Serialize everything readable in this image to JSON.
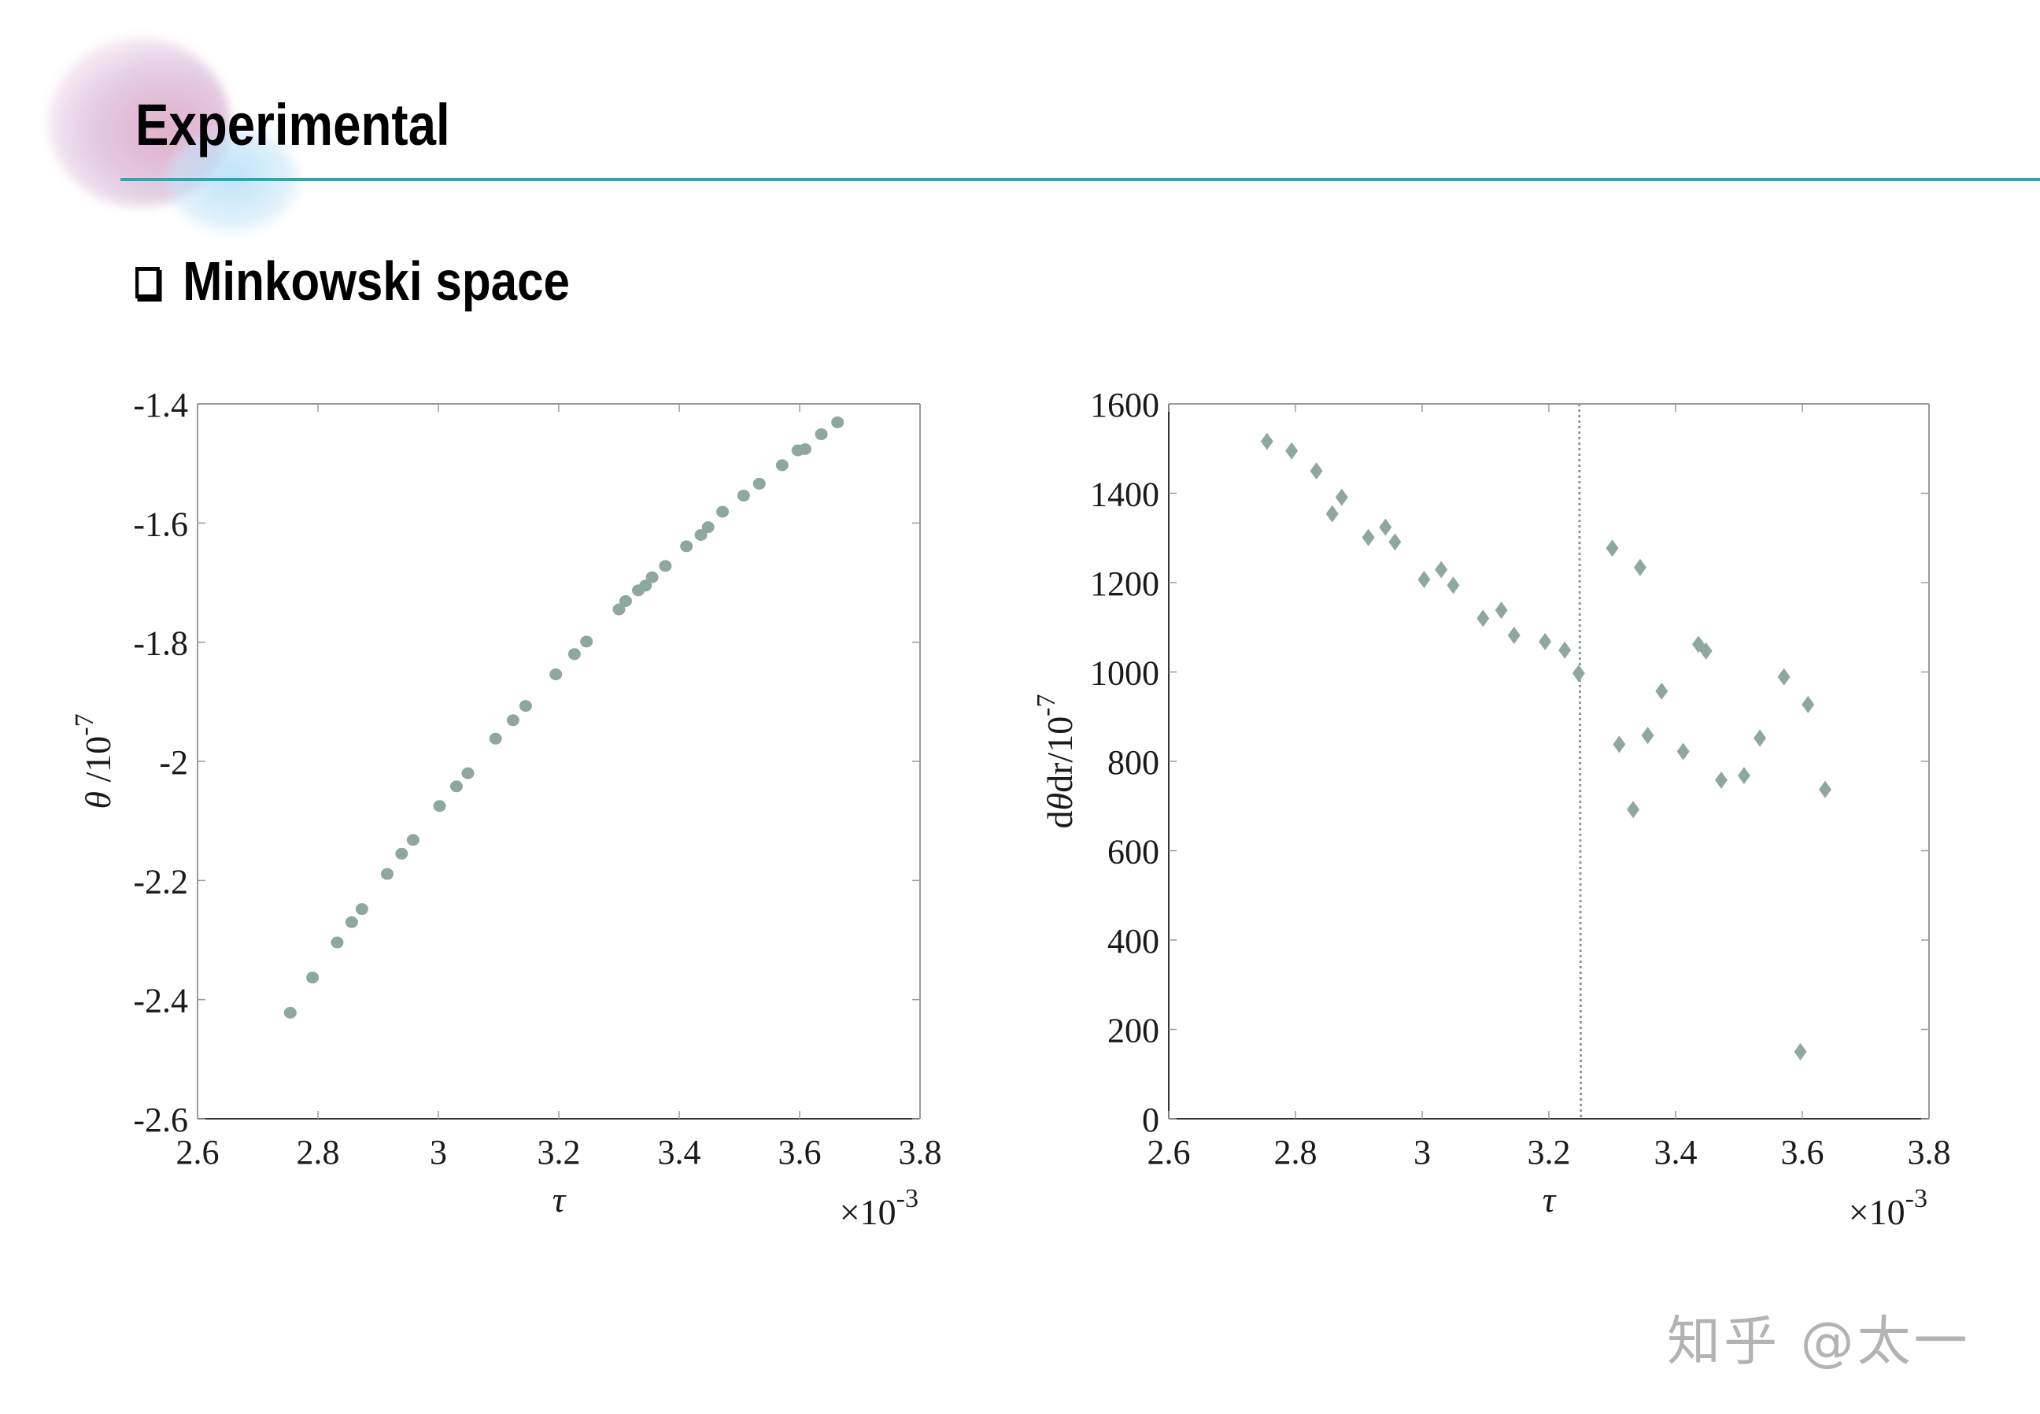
{
  "slide": {
    "title": "Experimental",
    "subtitle": "Minkowski space",
    "bullet_icon": "checkbox-icon",
    "watermark": "知乎 @太一",
    "colors": {
      "rule": "#2aa8b0",
      "marker": "#8fa89f",
      "axis": "#9a9a9a",
      "text": "#1a1a1a",
      "vline": "#8a9a96"
    }
  },
  "chart_data": [
    {
      "type": "scatter",
      "title": "",
      "marker": "circle",
      "xlabel": "τ",
      "ylabel": "θ /10",
      "ylabel_exponent": "-7",
      "x_multiplier_label": "×10",
      "x_multiplier_exponent": "-3",
      "xlim": [
        2.6,
        3.8
      ],
      "ylim": [
        -2.6,
        -1.4
      ],
      "xticks": [
        "2.6",
        "2.8",
        "3",
        "3.2",
        "3.4",
        "3.6",
        "3.8"
      ],
      "yticks": [
        "-1.4",
        "-1.6",
        "-1.8",
        "-2",
        "-2.2",
        "-2.4",
        "-2.6"
      ],
      "grid": false,
      "legend": null,
      "series": [
        {
          "name": "θ",
          "x": [
            2.754,
            2.791,
            2.832,
            2.856,
            2.873,
            2.915,
            2.939,
            2.958,
            3.002,
            3.03,
            3.049,
            3.095,
            3.124,
            3.145,
            3.195,
            3.226,
            3.246,
            3.3,
            3.311,
            3.332,
            3.344,
            3.355,
            3.377,
            3.412,
            3.436,
            3.448,
            3.472,
            3.507,
            3.533,
            3.571,
            3.597,
            3.609,
            3.636,
            3.663
          ],
          "y": [
            -2.422,
            -2.363,
            -2.304,
            -2.27,
            -2.248,
            -2.189,
            -2.155,
            -2.132,
            -2.075,
            -2.042,
            -2.02,
            -1.962,
            -1.931,
            -1.907,
            -1.854,
            -1.82,
            -1.799,
            -1.745,
            -1.731,
            -1.713,
            -1.705,
            -1.691,
            -1.672,
            -1.639,
            -1.62,
            -1.607,
            -1.581,
            -1.554,
            -1.534,
            -1.503,
            -1.478,
            -1.476,
            -1.451,
            -1.431
          ]
        }
      ]
    },
    {
      "type": "scatter",
      "title": "",
      "marker": "diamond",
      "xlabel": "τ",
      "ylabel": "dθdr/10",
      "ylabel_exponent": "-7",
      "x_multiplier_label": "×10",
      "x_multiplier_exponent": "-3",
      "xlim": [
        2.6,
        3.8
      ],
      "ylim": [
        0,
        1600
      ],
      "xticks": [
        "2.6",
        "2.8",
        "3",
        "3.2",
        "3.4",
        "3.6",
        "3.8"
      ],
      "yticks": [
        "1600",
        "1400",
        "1200",
        "1000",
        "800",
        "600",
        "400",
        "200",
        "0"
      ],
      "grid": false,
      "legend": null,
      "annotations": [
        {
          "type": "vertical-dotted-line",
          "x": 3.248
        }
      ],
      "series": [
        {
          "name": "dθ/dr",
          "x": [
            2.755,
            2.794,
            2.833,
            2.858,
            2.873,
            2.915,
            2.942,
            2.957,
            3.003,
            3.03,
            3.049,
            3.096,
            3.125,
            3.145,
            3.194,
            3.225,
            3.247,
            3.3,
            3.311,
            3.333,
            3.344,
            3.356,
            3.378,
            3.412,
            3.436,
            3.448,
            3.472,
            3.508,
            3.533,
            3.571,
            3.597,
            3.609,
            3.636
          ],
          "y": [
            1516,
            1495,
            1450,
            1354,
            1391,
            1301,
            1324,
            1291,
            1207,
            1229,
            1194,
            1120,
            1138,
            1082,
            1068,
            1049,
            997,
            1277,
            838,
            692,
            1234,
            858,
            957,
            822,
            1062,
            1047,
            758,
            768,
            852,
            989,
            150,
            927,
            737
          ]
        }
      ]
    }
  ]
}
